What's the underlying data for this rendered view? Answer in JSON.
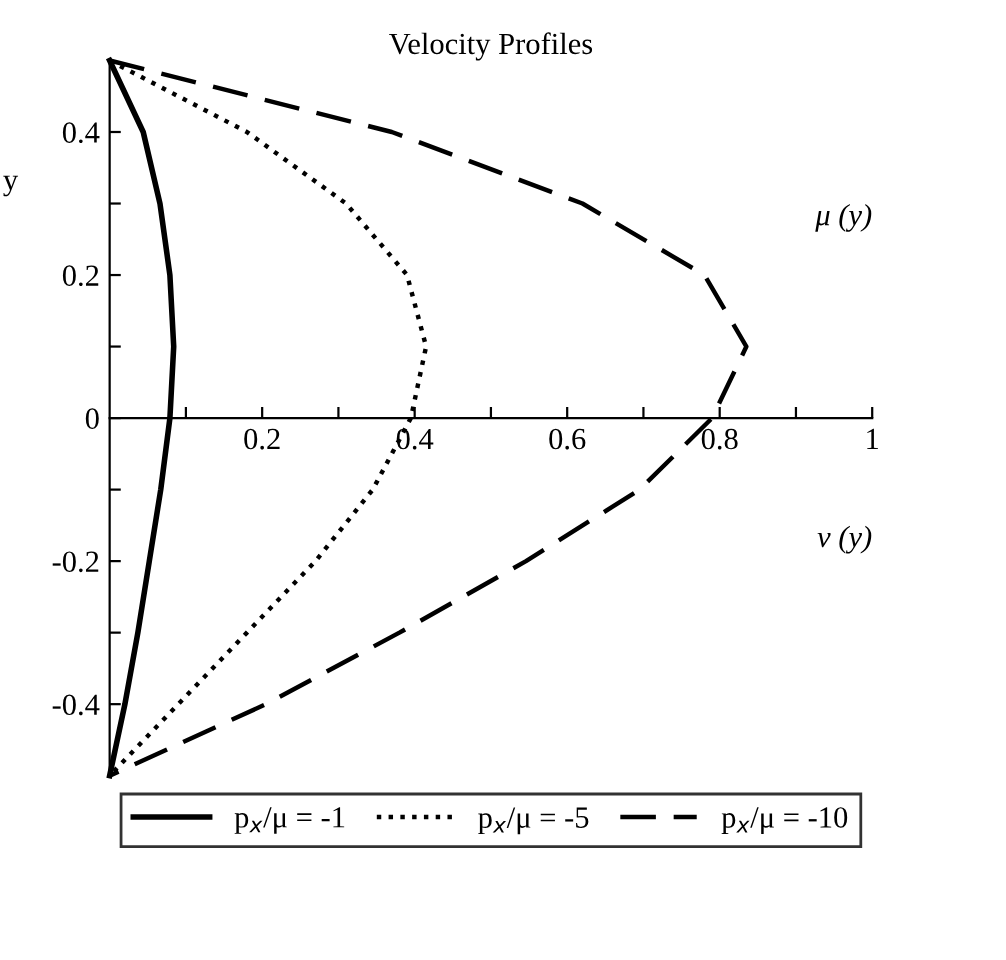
{
  "chart_data": {
    "type": "line",
    "title": "Velocity Profiles",
    "ylabel": "y",
    "annotations": [
      "μ (y)",
      "ν (y)"
    ],
    "xlim": [
      0,
      1
    ],
    "ylim": [
      -0.5,
      0.5
    ],
    "xticks": [
      {
        "value": 0.1,
        "label": null
      },
      0.2,
      {
        "value": 0.3,
        "label": null
      },
      0.4,
      {
        "value": 0.5,
        "label": null
      },
      0.6,
      {
        "value": 0.7,
        "label": null
      },
      0.8,
      {
        "value": 0.9,
        "label": null
      },
      1
    ],
    "yticks": [
      -0.4,
      {
        "value": -0.3,
        "label": null
      },
      -0.2,
      {
        "value": -0.1,
        "label": null
      },
      0,
      {
        "value": 0.1,
        "label": null
      },
      0.2,
      {
        "value": 0.3,
        "label": null
      },
      0.4
    ],
    "grid": false,
    "legend": "bottom",
    "marker": "none",
    "series": [
      {
        "name": "p$_{x}$/μ = -1",
        "color": "#000000",
        "line_style": "solid",
        "x": [
          0,
          0.044,
          0.066,
          0.079,
          0.084,
          0.079,
          0.067,
          0.052,
          0.037,
          0.02,
          0
        ],
        "values": [
          0.5,
          0.4,
          0.3,
          0.2,
          0.1,
          0,
          -0.1,
          -0.2,
          -0.3,
          -0.4,
          -0.5
        ]
      },
      {
        "name": "p$_{x}$/μ = -5",
        "color": "#000000",
        "line_style": "dotted",
        "x": [
          0,
          0.18,
          0.31,
          0.39,
          0.415,
          0.395,
          0.345,
          0.27,
          0.18,
          0.09,
          0
        ],
        "values": [
          0.5,
          0.4,
          0.3,
          0.2,
          0.1,
          0,
          -0.1,
          -0.2,
          -0.3,
          -0.4,
          -0.5
        ]
      },
      {
        "name": "p$_{x}$/μ = -10",
        "color": "#000000",
        "line_style": "dashed",
        "x": [
          0,
          0.37,
          0.62,
          0.78,
          0.835,
          0.79,
          0.695,
          0.546,
          0.38,
          0.205,
          0
        ],
        "values": [
          0.5,
          0.4,
          0.3,
          0.2,
          0.1,
          0,
          -0.1,
          -0.2,
          -0.3,
          -0.4,
          -0.5
        ]
      }
    ]
  }
}
